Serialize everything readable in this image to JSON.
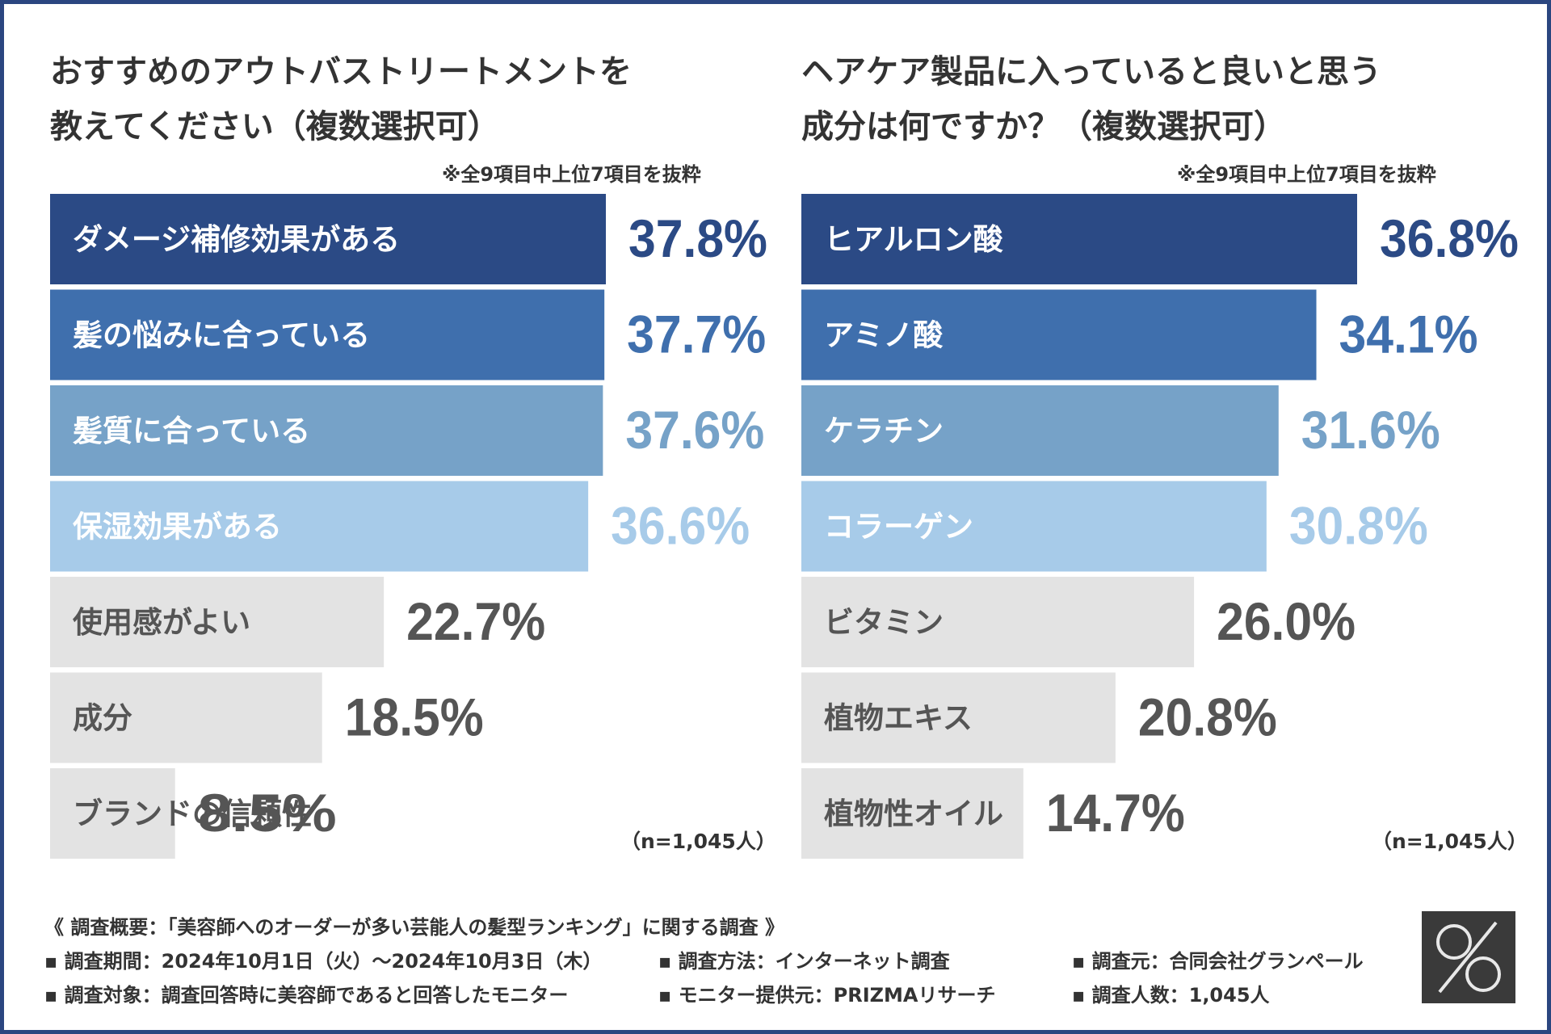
{
  "charts": {
    "left": {
      "title_line1": "おすすめのアウトバストリートメントを",
      "title_line2": "教えてください（複数選択可）",
      "note": "※全9項目中上位7項目を抜粋",
      "n_note": "（n=1,045人）"
    },
    "right": {
      "title_line1": "ヘアケア製品に入っていると良いと思う",
      "title_line2": "成分は何ですか？（複数選択可）",
      "note": "※全9項目中上位7項目を抜粋",
      "n_note": "（n=1,045人）"
    }
  },
  "chart_data": [
    {
      "type": "bar",
      "orientation": "horizontal",
      "title": "おすすめのアウトバストリートメントを教えてください（複数選択可）",
      "categories": [
        "ダメージ補修効果がある",
        "髪の悩みに合っている",
        "髪質に合っている",
        "保湿効果がある",
        "使用感がよい",
        "成分",
        "ブランドの信頼性"
      ],
      "values": [
        37.8,
        37.7,
        37.6,
        36.6,
        22.7,
        18.5,
        8.5
      ],
      "labels": [
        "37.8%",
        "37.7%",
        "37.6%",
        "36.6%",
        "22.7%",
        "18.5%",
        "8.5%"
      ],
      "xlim": [
        0,
        37.8
      ],
      "colors": [
        "#2b4a85",
        "#3f6fad",
        "#76a2c8",
        "#a7cbe9",
        "#e3e3e3",
        "#e3e3e3",
        "#e3e3e3"
      ],
      "value_colors": [
        "#2b4a85",
        "#3f6fad",
        "#76a2c8",
        "#a7cbe9",
        "#555555",
        "#555555",
        "#555555"
      ],
      "label_colors": [
        "#ffffff",
        "#ffffff",
        "#ffffff",
        "#ffffff",
        "#555555",
        "#555555",
        "#555555"
      ]
    },
    {
      "type": "bar",
      "orientation": "horizontal",
      "title": "ヘアケア製品に入っていると良いと思う成分は何ですか？（複数選択可）",
      "categories": [
        "ヒアルロン酸",
        "アミノ酸",
        "ケラチン",
        "コラーゲン",
        "ビタミン",
        "植物エキス",
        "植物性オイル"
      ],
      "values": [
        36.8,
        34.1,
        31.6,
        30.8,
        26.0,
        20.8,
        14.7
      ],
      "labels": [
        "36.8%",
        "34.1%",
        "31.6%",
        "30.8%",
        "26.0%",
        "20.8%",
        "14.7%"
      ],
      "xlim": [
        0,
        36.8
      ],
      "colors": [
        "#2b4a85",
        "#3f6fad",
        "#76a2c8",
        "#a7cbe9",
        "#e3e3e3",
        "#e3e3e3",
        "#e3e3e3"
      ],
      "value_colors": [
        "#2b4a85",
        "#3f6fad",
        "#76a2c8",
        "#a7cbe9",
        "#555555",
        "#555555",
        "#555555"
      ],
      "label_colors": [
        "#ffffff",
        "#ffffff",
        "#ffffff",
        "#ffffff",
        "#555555",
        "#555555",
        "#555555"
      ]
    }
  ],
  "footer": {
    "heading": "《 調査概要：「美容師へのオーダーが多い芸能人の髪型ランキング」に関する調査 》",
    "items": [
      "▪ 調査期間：2024年10月1日（火）〜2024年10月3日（木）",
      "▪ 調査方法：インターネット調査",
      "▪ 調査元：合同会社グランペール",
      "▪ 調査対象：調査回答時に美容師であると回答したモニター",
      "▪ モニター提供元：PRIZMAリサーチ",
      "▪ 調査人数：1,045人"
    ]
  },
  "logo": {
    "icon": "percent-logo-icon"
  }
}
